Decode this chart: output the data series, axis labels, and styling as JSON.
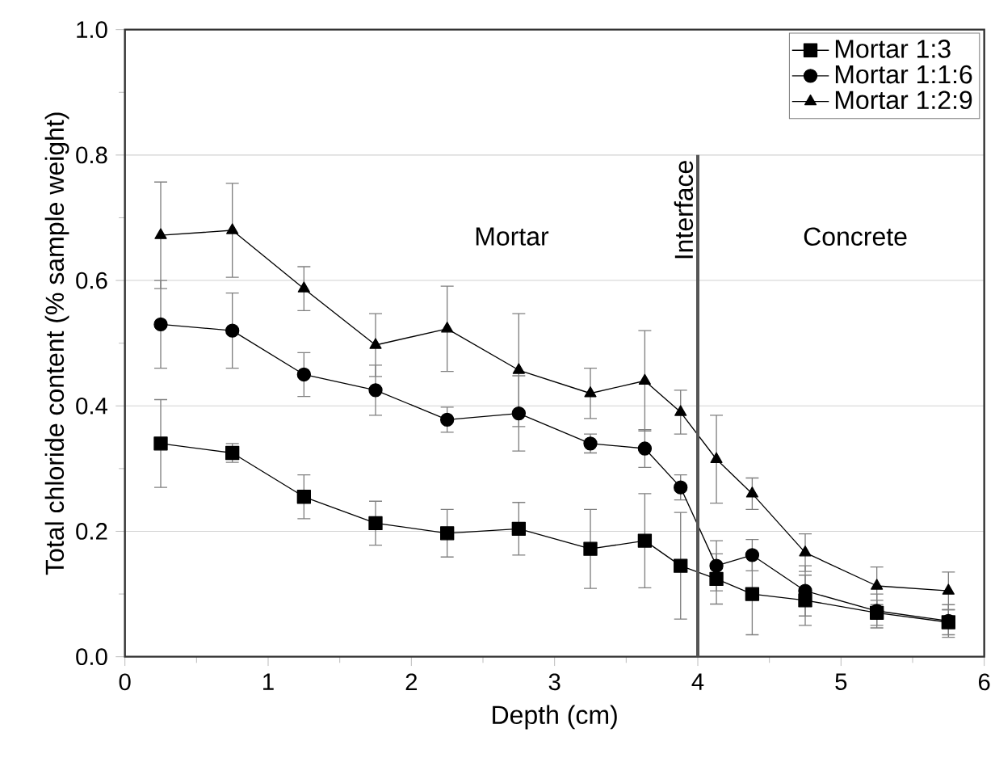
{
  "chart_data": {
    "type": "line",
    "xlabel": "Depth (cm)",
    "ylabel": "Total chloride content (% sample weight)",
    "x": [
      0.25,
      0.75,
      1.25,
      1.75,
      2.25,
      2.75,
      3.25,
      3.63,
      3.88,
      4.13,
      4.38,
      4.75,
      5.25,
      5.75
    ],
    "xlim": [
      0,
      6
    ],
    "xticks": [
      0,
      1,
      2,
      3,
      4,
      5,
      6
    ],
    "ylim": [
      0,
      1
    ],
    "yticks": [
      {
        "value": 0,
        "label": "0.0"
      },
      0.2,
      0.4,
      0.6,
      0.8,
      {
        "value": 1,
        "label": "1.0"
      }
    ],
    "grid": "y",
    "legend": "top right",
    "series": [
      {
        "name": "Mortar 1:3",
        "color": "#000000",
        "marker": "square",
        "values": [
          0.34,
          0.325,
          0.255,
          0.213,
          0.197,
          0.204,
          0.172,
          0.185,
          0.145,
          0.124,
          0.1,
          0.09,
          0.07,
          0.055
        ],
        "errors": [
          0.07,
          0.015,
          0.035,
          0.035,
          0.038,
          0.042,
          0.063,
          0.075,
          0.085,
          0.04,
          0.065,
          0.04,
          0.02,
          0.02
        ]
      },
      {
        "name": "Mortar 1:1:6",
        "color": "#000000",
        "marker": "circle",
        "values": [
          0.53,
          0.52,
          0.45,
          0.425,
          0.378,
          0.388,
          0.34,
          0.332,
          0.27,
          0.145,
          0.162,
          0.105,
          0.073,
          0.057
        ],
        "errors": [
          0.07,
          0.06,
          0.035,
          0.04,
          0.02,
          0.06,
          0.015,
          0.03,
          0.02,
          0.04,
          0.025,
          0.04,
          0.027,
          0.026
        ]
      },
      {
        "name": "Mortar 1:2:9",
        "color": "#000000",
        "marker": "triangle",
        "values": [
          0.672,
          0.68,
          0.587,
          0.497,
          0.523,
          0.457,
          0.42,
          0.44,
          0.39,
          0.315,
          0.26,
          0.166,
          0.113,
          0.105
        ],
        "errors": [
          0.085,
          0.075,
          0.035,
          0.05,
          0.068,
          0.09,
          0.04,
          0.08,
          0.035,
          0.07,
          0.025,
          0.03,
          0.03,
          0.03
        ]
      }
    ],
    "ref_lines": [
      {
        "axis": "x",
        "value": 4,
        "label": "Interface",
        "color": "#555555"
      }
    ],
    "annotations": [
      "Mortar",
      "Concrete"
    ]
  }
}
